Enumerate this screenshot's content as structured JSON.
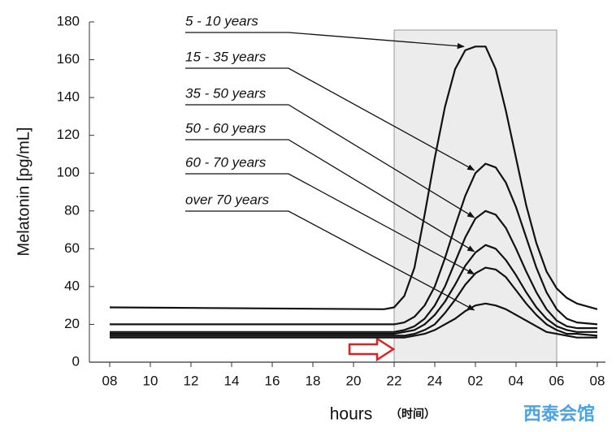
{
  "chart_data": {
    "type": "line",
    "y_label": "Melatonin [pg/mL]",
    "x_label": "hours",
    "x_label_note": "（时间）",
    "watermark": "西泰会馆",
    "x": [
      8,
      21.5,
      22,
      22.5,
      23,
      23.5,
      24,
      24.5,
      25,
      25.5,
      26,
      26.5,
      27,
      27.5,
      28,
      28.5,
      29,
      29.5,
      30,
      30.5,
      31,
      32
    ],
    "series": [
      {
        "name": "5 - 10 years",
        "color": "#111111",
        "values": [
          29,
          28,
          29,
          35,
          50,
          78,
          108,
          135,
          155,
          165,
          167,
          167,
          155,
          133,
          108,
          83,
          63,
          48,
          39,
          34,
          31,
          28
        ]
      },
      {
        "name": "15 - 35 years",
        "color": "#111111",
        "values": [
          20,
          20,
          20,
          21,
          24,
          30,
          40,
          55,
          72,
          88,
          100,
          105,
          103,
          95,
          82,
          66,
          50,
          37,
          28,
          23,
          21,
          20
        ]
      },
      {
        "name": "35 - 50 years",
        "color": "#111111",
        "values": [
          16,
          16,
          16,
          17,
          19,
          23,
          30,
          40,
          53,
          66,
          76,
          80,
          78,
          71,
          60,
          48,
          37,
          28,
          22,
          19,
          18,
          18
        ]
      },
      {
        "name": "50 - 60 years",
        "color": "#111111",
        "values": [
          15,
          15,
          15,
          16,
          17,
          20,
          25,
          32,
          41,
          51,
          58,
          62,
          60,
          54,
          46,
          37,
          29,
          23,
          19,
          17,
          16,
          16
        ]
      },
      {
        "name": "60 - 70 years",
        "color": "#111111",
        "values": [
          14,
          14,
          14,
          14,
          15,
          17,
          20,
          26,
          33,
          41,
          47,
          50,
          49,
          45,
          38,
          31,
          25,
          20,
          17,
          15,
          15,
          14
        ]
      },
      {
        "name": "over 70 years",
        "color": "#111111",
        "values": [
          13,
          13,
          13,
          13,
          14,
          15,
          17,
          20,
          23,
          27,
          30,
          31,
          30,
          28,
          25,
          22,
          19,
          16,
          15,
          14,
          13,
          13
        ]
      }
    ],
    "shaded_range": [
      22,
      30
    ],
    "xlim": [
      8,
      32
    ],
    "xticks": [
      {
        "value": 8,
        "label": "08"
      },
      10,
      12,
      14,
      16,
      18,
      20,
      22,
      24,
      {
        "value": 26,
        "label": "02"
      },
      {
        "value": 28,
        "label": "04"
      },
      {
        "value": 30,
        "label": "06"
      },
      {
        "value": 32,
        "label": "08"
      }
    ],
    "ylim": [
      0,
      180
    ],
    "yticks": [
      0,
      20,
      40,
      60,
      80,
      100,
      120,
      140,
      160,
      180
    ]
  }
}
